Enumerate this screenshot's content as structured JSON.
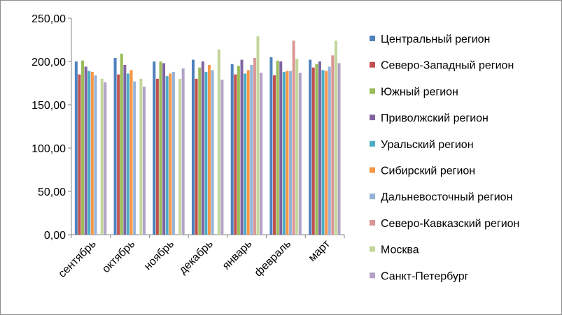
{
  "chart_data": {
    "type": "bar",
    "categories": [
      "сентябрь",
      "октябрь",
      "ноябрь",
      "декабрь",
      "январь",
      "февраль",
      "март"
    ],
    "ylim": [
      0,
      250
    ],
    "yticks": [
      "0,00",
      "50,00",
      "100,00",
      "150,00",
      "200,00",
      "250,00"
    ],
    "ytick_values": [
      0,
      50,
      100,
      150,
      200,
      250
    ],
    "grid": "none",
    "legend_position": "right",
    "series": [
      {
        "name": "Центральный регион",
        "color": "#4F81BD",
        "values": [
          200,
          204,
          200,
          202,
          197,
          205,
          202
        ]
      },
      {
        "name": "Северо-Западный регион",
        "color": "#C0504D",
        "values": [
          185,
          185,
          180,
          180,
          185,
          184,
          193
        ]
      },
      {
        "name": "Южный регион",
        "color": "#9BBB59",
        "values": [
          201,
          209,
          200,
          193,
          195,
          201,
          197
        ]
      },
      {
        "name": "Приволжский регион",
        "color": "#8064A2",
        "values": [
          194,
          196,
          198,
          200,
          202,
          200,
          200
        ]
      },
      {
        "name": "Уральский регион",
        "color": "#4BACC6",
        "values": [
          189,
          186,
          183,
          188,
          186,
          188,
          190
        ]
      },
      {
        "name": "Сибирский регион",
        "color": "#F79646",
        "values": [
          188,
          190,
          186,
          196,
          190,
          189,
          189
        ]
      },
      {
        "name": "Дальневосточный регион",
        "color": "#95B3D7",
        "values": [
          184,
          177,
          188,
          190,
          196,
          189,
          194
        ]
      },
      {
        "name": "Северо-Кавказский регион",
        "color": "#D99694",
        "values": [
          0,
          0,
          0,
          0,
          204,
          224,
          207
        ]
      },
      {
        "name": "Москва",
        "color": "#C3D69B",
        "values": [
          180,
          180,
          180,
          214,
          229,
          203,
          224
        ]
      },
      {
        "name": "Санкт-Петербург",
        "color": "#B2A2C7",
        "values": [
          176,
          171,
          192,
          179,
          187,
          187,
          198
        ]
      }
    ]
  }
}
